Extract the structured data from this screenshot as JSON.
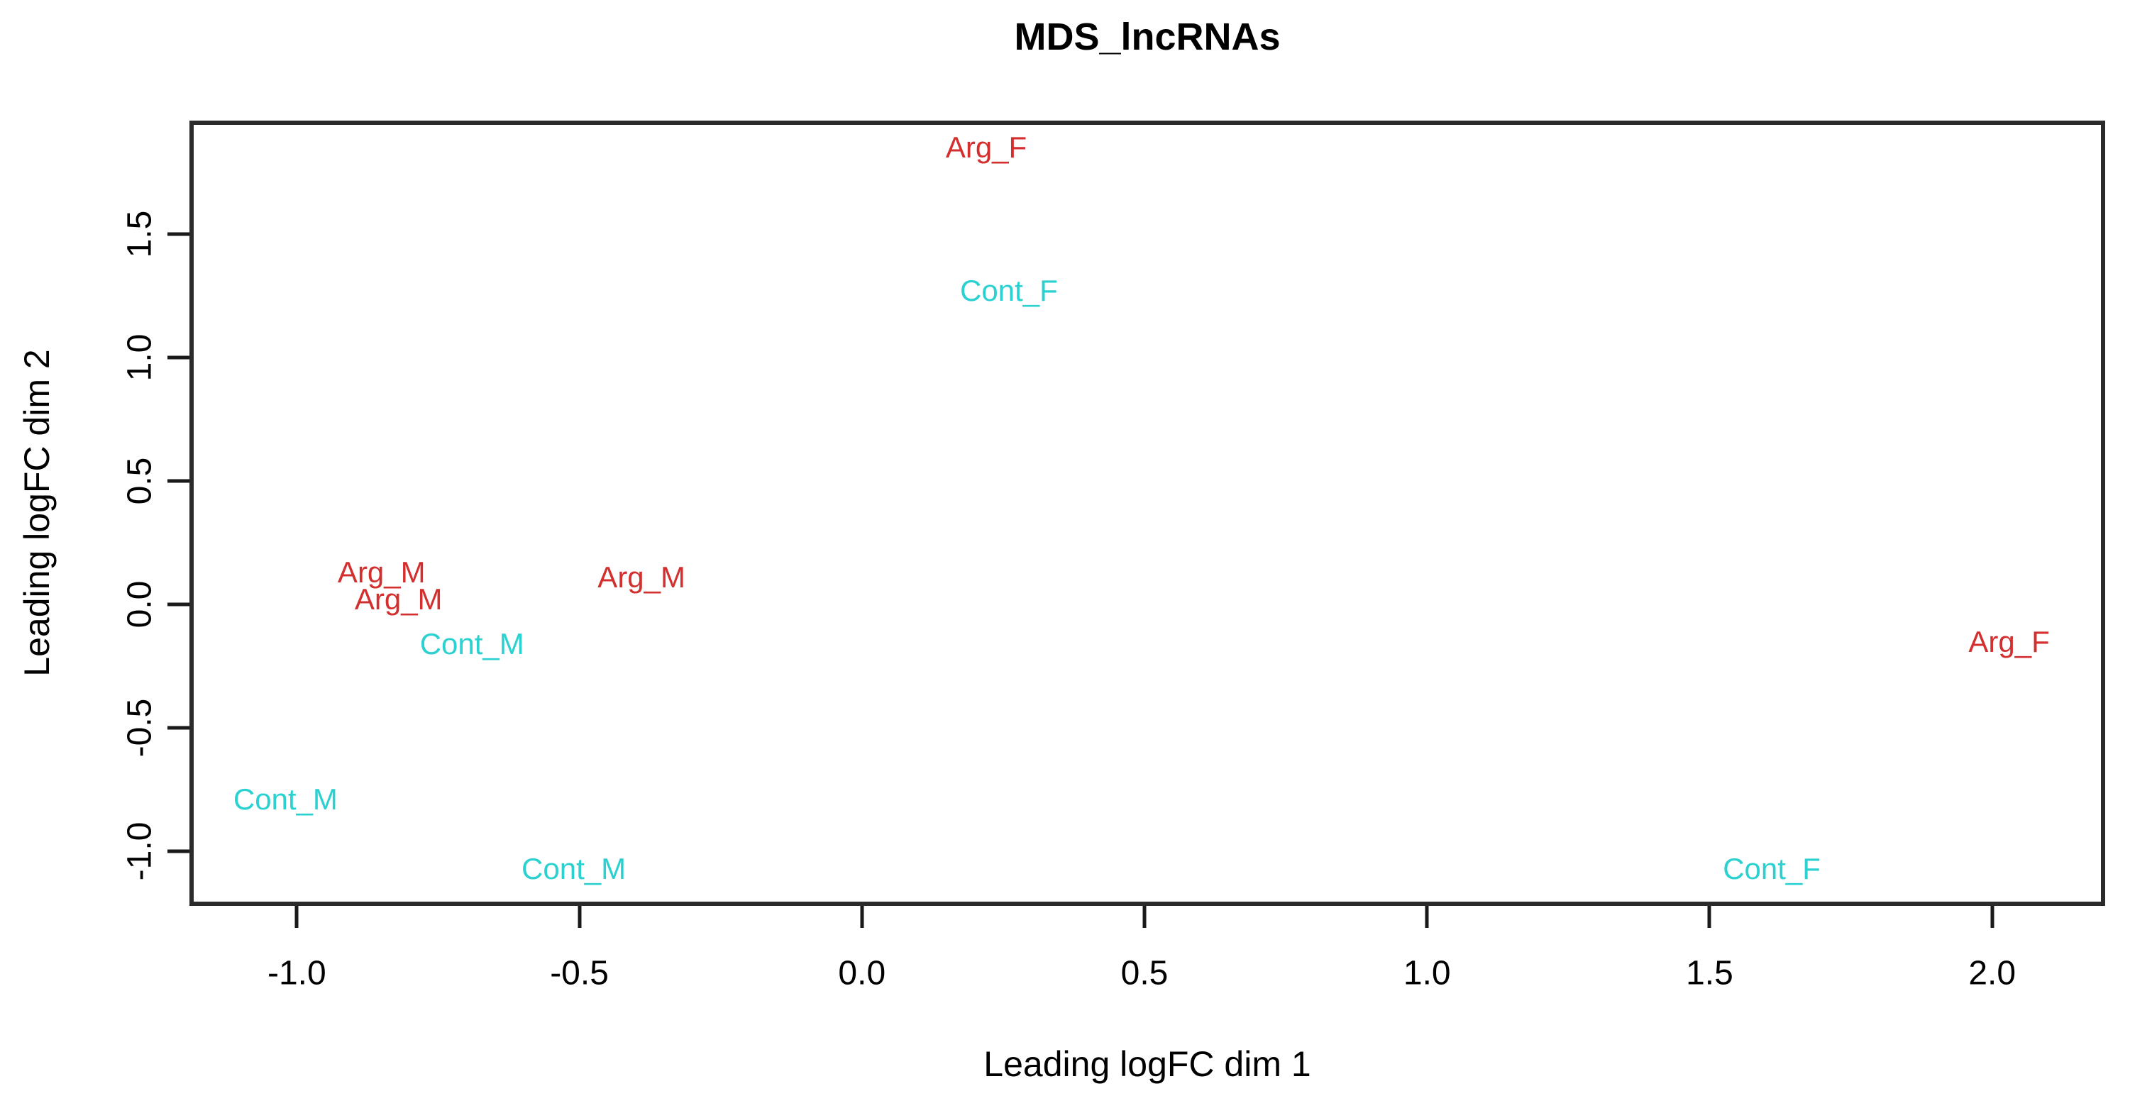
{
  "figure": {
    "title": "MDS_lncRNAs",
    "xlabel": "Leading logFC dim 1",
    "ylabel": "Leading logFC dim 2"
  },
  "colors": {
    "arg_group": "#d32f2f",
    "cont_group": "#2bd1d1",
    "axis_text": "#000000",
    "plot_border": "#2b2b2b"
  },
  "chart_data": {
    "type": "scatter",
    "subtype": "mds-text-label-plot",
    "title": "MDS_lncRNAs",
    "xlabel": "Leading logFC dim 1",
    "ylabel": "Leading logFC dim 2",
    "grid": false,
    "legend_position": "none",
    "point_marker": "text-label",
    "xlim": [
      -1.19,
      2.2
    ],
    "ylim": [
      -1.22,
      1.96
    ],
    "x_ticks": [
      -1.0,
      -0.5,
      0.0,
      0.5,
      1.0,
      1.5,
      2.0
    ],
    "x_tick_labels": [
      "-1.0",
      "-0.5",
      "0.0",
      "0.5",
      "1.0",
      "1.5",
      "2.0"
    ],
    "y_ticks": [
      -1.0,
      -0.5,
      0.0,
      0.5,
      1.0,
      1.5
    ],
    "y_tick_labels": [
      "-1.0",
      "-0.5",
      "0.0",
      "0.5",
      "1.0",
      "1.5"
    ],
    "series": [
      {
        "name": "Arg",
        "color": "#d32f2f",
        "points": [
          {
            "label": "Arg_F",
            "x": 0.22,
            "y": 1.85
          },
          {
            "label": "Arg_M",
            "x": -0.85,
            "y": 0.13
          },
          {
            "label": "Arg_M",
            "x": -0.82,
            "y": 0.02
          },
          {
            "label": "Arg_M",
            "x": -0.39,
            "y": 0.11
          },
          {
            "label": "Arg_F",
            "x": 2.03,
            "y": -0.15
          }
        ]
      },
      {
        "name": "Cont",
        "color": "#2bd1d1",
        "points": [
          {
            "label": "Cont_F",
            "x": 0.26,
            "y": 1.27
          },
          {
            "label": "Cont_M",
            "x": -0.69,
            "y": -0.16
          },
          {
            "label": "Cont_M",
            "x": -1.02,
            "y": -0.79
          },
          {
            "label": "Cont_M",
            "x": -0.51,
            "y": -1.07
          },
          {
            "label": "Cont_F",
            "x": 1.61,
            "y": -1.07
          }
        ]
      }
    ]
  }
}
